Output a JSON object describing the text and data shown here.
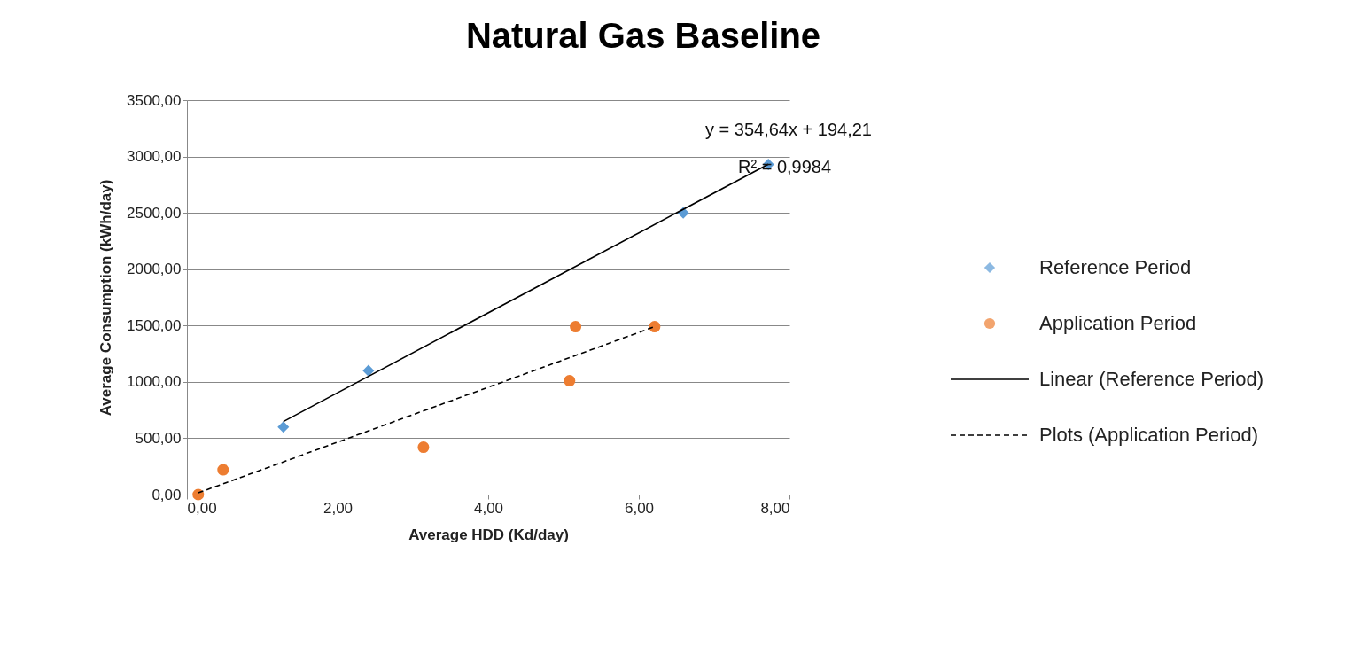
{
  "chart_data": {
    "type": "scatter",
    "title": "Natural Gas Baseline",
    "xlabel": "Average HDD  (Kd/day)",
    "ylabel": "Average Consumption  (kWh/day)",
    "xlim": [
      0,
      8
    ],
    "xticks": [
      {
        "value": 0,
        "label": "0,00"
      },
      {
        "value": 2,
        "label": "2,00"
      },
      {
        "value": 4,
        "label": "4,00"
      },
      {
        "value": 6,
        "label": "6,00"
      },
      {
        "value": 8,
        "label": "8,00"
      }
    ],
    "ylim": [
      0,
      3500
    ],
    "yticks": [
      {
        "value": 0,
        "label": "0,00"
      },
      {
        "value": 500,
        "label": "500,00"
      },
      {
        "value": 1000,
        "label": "1000,00"
      },
      {
        "value": 1500,
        "label": "1500,00"
      },
      {
        "value": 2000,
        "label": "2000,00"
      },
      {
        "value": 2500,
        "label": "2500,00"
      },
      {
        "value": 3000,
        "label": "3000,00"
      },
      {
        "value": 3500,
        "label": "3500,00"
      }
    ],
    "grid": "y",
    "legend": "right",
    "series": [
      {
        "name": "Reference Period",
        "type": "scatter",
        "marker": "diamond",
        "color": "#5b9bd5",
        "x": [
          1.28,
          2.41,
          6.59,
          7.72
        ],
        "values": [
          600,
          1100,
          2500,
          2930
        ]
      },
      {
        "name": "Application Period",
        "type": "scatter",
        "marker": "circle",
        "color": "#ed7d31",
        "x": [
          0.15,
          0.48,
          3.14,
          5.08,
          5.16,
          6.21
        ],
        "values": [
          0,
          220,
          420,
          1010,
          1490,
          1490
        ]
      },
      {
        "name": "Linear (Reference Period)",
        "type": "line",
        "line_style": "solid",
        "color": "#000000",
        "x": [
          1.28,
          7.72
        ],
        "values": [
          648,
          2932
        ]
      },
      {
        "name": "Plots (Application Period)",
        "type": "line",
        "line_style": "dashed",
        "color": "#000000",
        "x": [
          0.15,
          6.21
        ],
        "values": [
          15,
          1490
        ]
      }
    ],
    "annotations": [
      "y = 354,64x + 194,21",
      "R² = 0,9984"
    ]
  }
}
